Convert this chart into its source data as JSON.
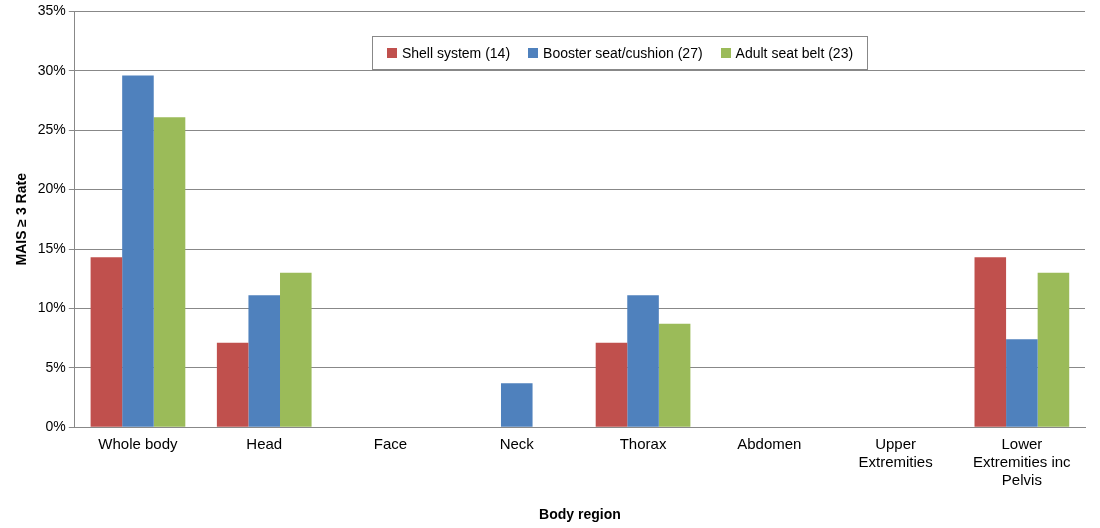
{
  "chart_data": {
    "type": "bar",
    "xlabel": "Body region",
    "ylabel": "MAIS ≥ 3 Rate",
    "categories": [
      "Whole body",
      "Head",
      "Face",
      "Neck",
      "Thorax",
      "Abdomen",
      "Upper Extremities",
      "Lower Extremities inc Pelvis"
    ],
    "series": [
      {
        "name": "Shell system (14)",
        "color": "#c0504d",
        "values": [
          14.3,
          7.1,
          0,
          0,
          7.1,
          0,
          0,
          14.3
        ]
      },
      {
        "name": "Booster seat/cushion (27)",
        "color": "#4f81bd",
        "values": [
          29.6,
          11.1,
          0,
          3.7,
          11.1,
          0,
          0,
          7.4
        ]
      },
      {
        "name": "Adult seat belt (23)",
        "color": "#9bbb59",
        "values": [
          26.1,
          13.0,
          0,
          0,
          8.7,
          0,
          0,
          13.0
        ]
      }
    ],
    "ylim": [
      0,
      35
    ],
    "yticks": [
      {
        "value": 0,
        "label": "0%"
      },
      {
        "value": 5,
        "label": "5%"
      },
      {
        "value": 10,
        "label": "10%"
      },
      {
        "value": 15,
        "label": "15%"
      },
      {
        "value": 20,
        "label": "20%"
      },
      {
        "value": 25,
        "label": "25%"
      },
      {
        "value": 30,
        "label": "30%"
      },
      {
        "value": 35,
        "label": "35%"
      }
    ],
    "grid": "y",
    "legend": "top"
  }
}
